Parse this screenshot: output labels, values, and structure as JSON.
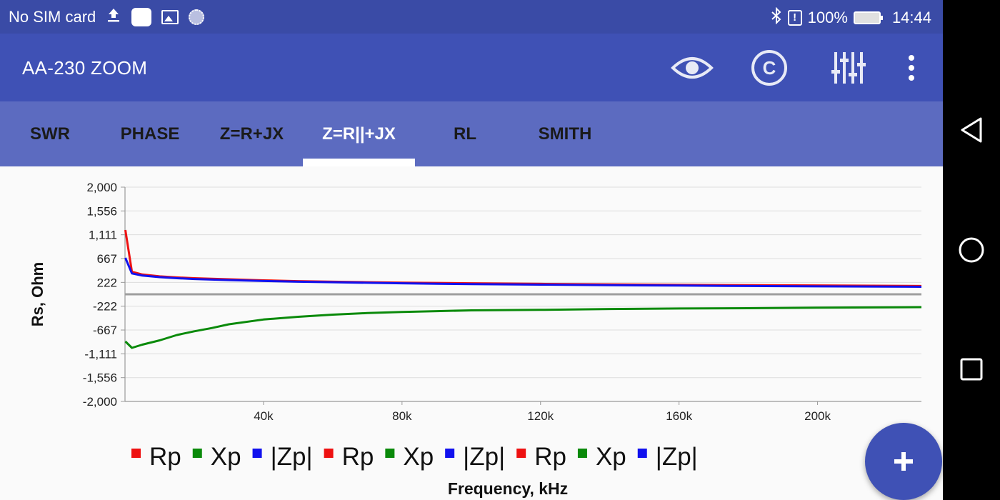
{
  "status_bar": {
    "carrier": "No SIM card",
    "battery": "100%",
    "time": "14:44",
    "icons": [
      "upload-icon",
      "notification-square-icon",
      "image-icon",
      "sync-icon",
      "bluetooth-icon",
      "alert-icon",
      "battery-icon"
    ]
  },
  "app_bar": {
    "title": "AA-230 ZOOM",
    "actions": [
      "eye-icon",
      "copyright-icon",
      "equalizer-icon",
      "more-vert-icon"
    ]
  },
  "tabs": [
    {
      "label": "SWR",
      "active": false
    },
    {
      "label": "PHASE",
      "active": false
    },
    {
      "label": "Z=R+JX",
      "active": false
    },
    {
      "label": "Z=R||+JX",
      "active": true
    },
    {
      "label": "RL",
      "active": false
    },
    {
      "label": "SMITH",
      "active": false
    }
  ],
  "colors": {
    "status_bar": "#3a4ba6",
    "app_bar": "#3f51b5",
    "tab_bar": "#5c6bc0",
    "rp": "#ee1111",
    "xp": "#0a8a0a",
    "zp": "#1111ee",
    "zero_line": "#9e9e9e"
  },
  "chart_data": {
    "type": "line",
    "ylabel": "Rs, Ohm",
    "xlabel": "Frequency, kHz",
    "ylim": [
      -2000,
      2000
    ],
    "xlim": [
      0,
      230000
    ],
    "yticks": [
      "2,000",
      "1,556",
      "1,111",
      "667",
      "222",
      "-222",
      "-667",
      "-1,111",
      "-1,556",
      "-2,000"
    ],
    "ytick_values": [
      2000,
      1556,
      1111,
      667,
      222,
      -222,
      -667,
      -1111,
      -1556,
      -2000
    ],
    "xticks": [
      "40k",
      "80k",
      "120k",
      "160k",
      "200k"
    ],
    "xtick_values": [
      40000,
      80000,
      120000,
      160000,
      200000
    ],
    "grid": true,
    "legend_position": "bottom",
    "legend": [
      {
        "name": "Rp",
        "color": "#ee1111"
      },
      {
        "name": "Xp",
        "color": "#0a8a0a"
      },
      {
        "name": "|Zp|",
        "color": "#1111ee"
      },
      {
        "name": "Rp",
        "color": "#ee1111"
      },
      {
        "name": "Xp",
        "color": "#0a8a0a"
      },
      {
        "name": "|Zp|",
        "color": "#1111ee"
      },
      {
        "name": "Rp",
        "color": "#ee1111"
      },
      {
        "name": "Xp",
        "color": "#0a8a0a"
      },
      {
        "name": "|Zp|",
        "color": "#1111ee"
      }
    ],
    "x": [
      100,
      2000,
      5000,
      10000,
      15000,
      20000,
      25000,
      30000,
      40000,
      50000,
      60000,
      70000,
      80000,
      90000,
      100000,
      120000,
      140000,
      160000,
      180000,
      200000,
      230000
    ],
    "series": [
      {
        "name": "Rp",
        "values": [
          1200,
          420,
          370,
          335,
          315,
          300,
          290,
          280,
          260,
          245,
          235,
          225,
          218,
          212,
          205,
          195,
          185,
          178,
          170,
          165,
          155
        ]
      },
      {
        "name": "Xp",
        "values": [
          -880,
          -1000,
          -940,
          -860,
          -760,
          -690,
          -630,
          -560,
          -470,
          -420,
          -380,
          -350,
          -330,
          -315,
          -300,
          -290,
          -275,
          -265,
          -260,
          -250,
          -240
        ]
      },
      {
        "name": "|Zp|",
        "values": [
          680,
          390,
          350,
          320,
          300,
          285,
          275,
          265,
          248,
          235,
          225,
          215,
          205,
          198,
          190,
          180,
          170,
          162,
          155,
          148,
          140
        ]
      }
    ]
  },
  "fab": {
    "icon": "plus-icon"
  },
  "nav_bar": {
    "icons": [
      "back-icon",
      "home-icon",
      "recents-icon"
    ]
  }
}
